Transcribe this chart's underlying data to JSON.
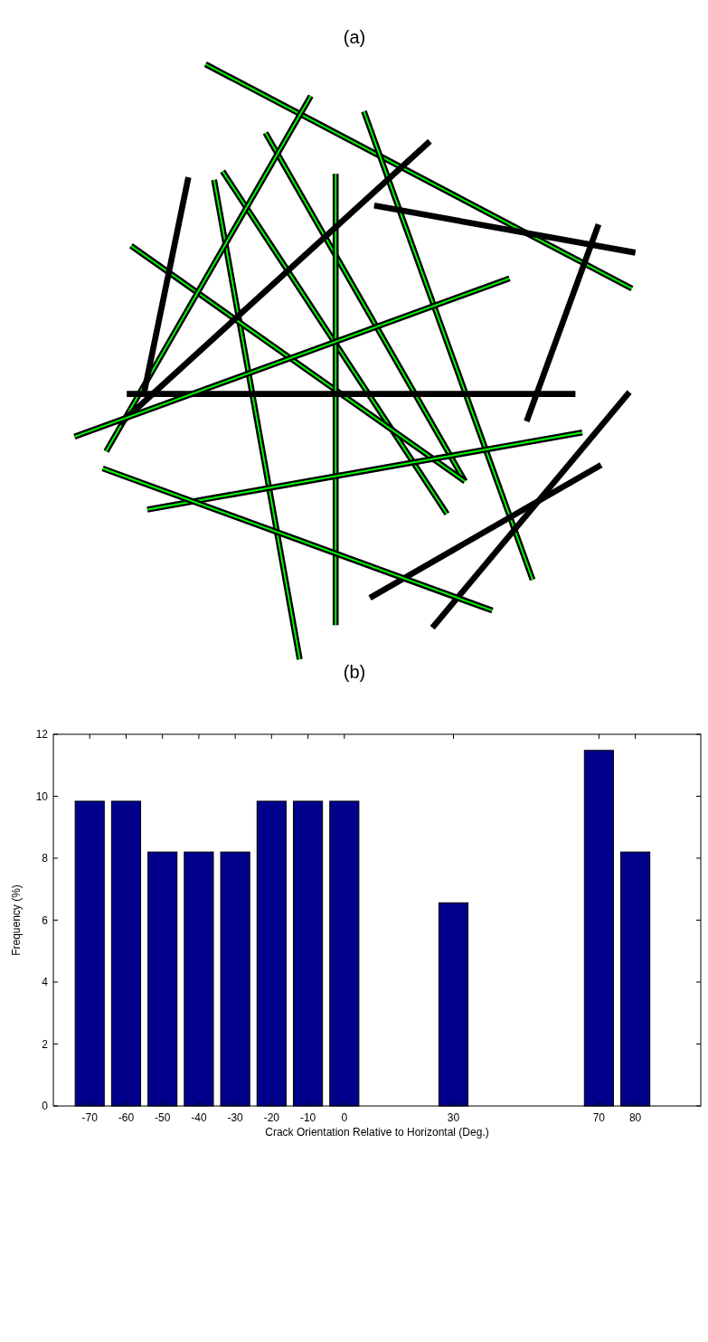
{
  "chart_data": [
    {
      "type": "other",
      "title": "(a)"
    },
    {
      "type": "bar",
      "title": "(b)",
      "xlabel": "Crack Orientation Relative to Horizontal (Deg.)",
      "ylabel": "Frequency (%)",
      "x": [
        -70,
        -60,
        -50,
        -40,
        -30,
        -20,
        -10,
        0,
        30,
        70,
        80
      ],
      "values": [
        9.84,
        9.84,
        8.2,
        8.2,
        8.2,
        9.84,
        9.84,
        9.84,
        6.56,
        11.48,
        8.2
      ],
      "color": "#00008b",
      "xlim": [
        -80,
        98
      ],
      "xticks": [
        -70,
        -60,
        -50,
        -40,
        -30,
        -20,
        -10,
        0,
        30,
        70,
        80
      ],
      "ylim": [
        0,
        12
      ],
      "yticks": [
        0,
        2,
        4,
        6,
        8,
        10,
        12
      ]
    }
  ]
}
